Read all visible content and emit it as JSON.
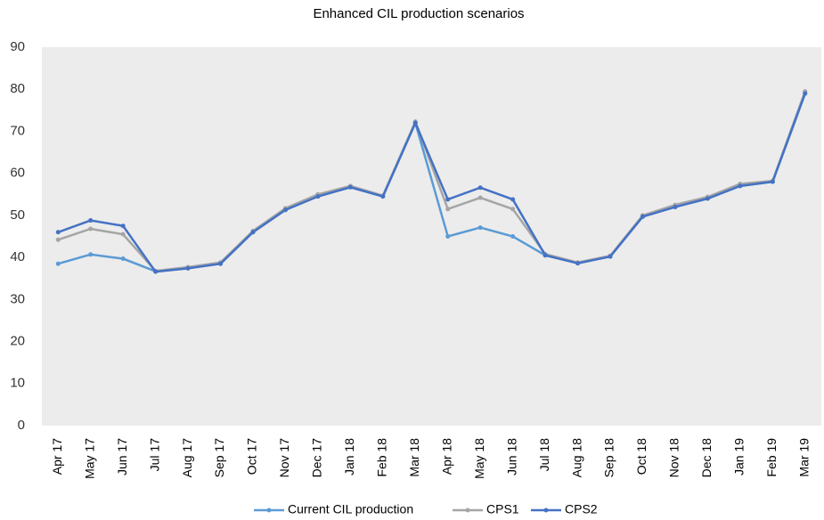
{
  "chart_data": {
    "type": "line",
    "title": "Enhanced CIL production scenarios",
    "categories": [
      "Apr 17",
      "May 17",
      "Jun 17",
      "Jul 17",
      "Aug 17",
      "Sep 17",
      "Oct 17",
      "Nov 17",
      "Dec 17",
      "Jan 18",
      "Feb 18",
      "Mar 18",
      "Apr 18",
      "May 18",
      "Jun 18",
      "Jul 18",
      "Aug 18",
      "Sep 18",
      "Oct 18",
      "Nov 18",
      "Dec 18",
      "Jan 19",
      "Feb 19",
      "Mar 19"
    ],
    "series": [
      {
        "name": "Current CIL production",
        "color": "#5b9bd5",
        "values": [
          38.5,
          40.7,
          39.7,
          36.7,
          37.5,
          38.5,
          46,
          51.3,
          54.5,
          56.7,
          54.5,
          72,
          45,
          47.1,
          45,
          40.5,
          38.7,
          40.2,
          49.7,
          52,
          54,
          57,
          58,
          79
        ]
      },
      {
        "name": "CPS1",
        "color": "#a5a5a5",
        "values": [
          44.2,
          46.8,
          45.5,
          36.8,
          37.7,
          38.8,
          46.3,
          51.7,
          55,
          57,
          54.7,
          72.3,
          51.5,
          54.2,
          51.5,
          40.8,
          38.8,
          40.4,
          50,
          52.5,
          54.4,
          57.5,
          58.2,
          79.5
        ]
      },
      {
        "name": "CPS2",
        "color": "#4472c4",
        "values": [
          46,
          48.8,
          47.5,
          36.6,
          37.4,
          38.5,
          46,
          51.3,
          54.5,
          56.7,
          54.5,
          72,
          53.8,
          56.6,
          53.8,
          40.5,
          38.6,
          40.2,
          49.7,
          52,
          54,
          57,
          58,
          79
        ]
      }
    ],
    "ylim": [
      0,
      90
    ],
    "yticks": [
      0,
      10,
      20,
      30,
      40,
      50,
      60,
      70,
      80,
      90
    ],
    "grid": false,
    "legend": "bottom"
  }
}
